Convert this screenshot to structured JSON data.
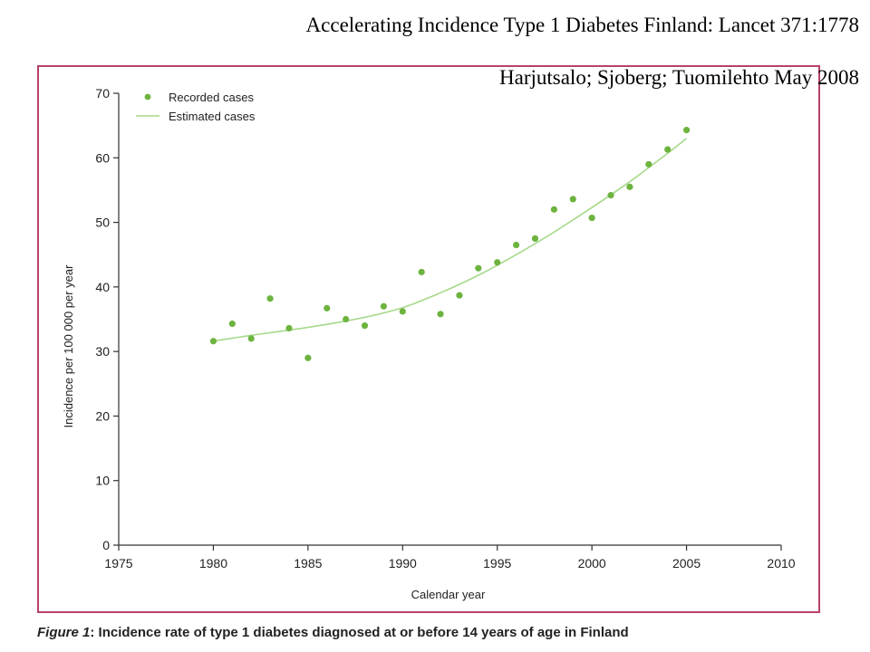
{
  "slide": {
    "title_line_1": "Accelerating Incidence Type 1 Diabetes Finland: Lancet 371:1778",
    "title_line_2": "Harjutsalo; Sjoberg; Tuomilehto May 2008",
    "frame_color": "#b84266"
  },
  "caption": {
    "figure_label": "Figure 1",
    "text": ": Incidence rate of type 1 diabetes diagnosed at or before 14 years of age in Finland"
  },
  "chart_data": {
    "type": "scatter",
    "xlabel": "Calendar year",
    "ylabel": "Incidence per 100 000 per year",
    "xlim": [
      1975,
      2010
    ],
    "ylim": [
      0,
      70
    ],
    "xticks": [
      1975,
      1980,
      1985,
      1990,
      1995,
      2000,
      2005,
      2010
    ],
    "yticks": [
      0,
      10,
      20,
      30,
      40,
      50,
      60,
      70
    ],
    "grid": false,
    "legend_position": "top-left",
    "colors": {
      "recorded": "#6db33f",
      "estimated": "#a6d98a",
      "axis": "#333333"
    },
    "series": [
      {
        "name": "Recorded cases",
        "style": "points",
        "x": [
          1980,
          1981,
          1982,
          1983,
          1984,
          1985,
          1986,
          1987,
          1988,
          1989,
          1990,
          1991,
          1992,
          1993,
          1994,
          1995,
          1996,
          1997,
          1998,
          1999,
          2000,
          2001,
          2002,
          2003,
          2004,
          2005
        ],
        "y": [
          31.6,
          34.3,
          32.0,
          38.2,
          33.6,
          29.0,
          36.7,
          35.0,
          34.0,
          37.0,
          36.2,
          42.3,
          35.8,
          38.7,
          42.9,
          43.8,
          46.5,
          47.5,
          52.0,
          53.6,
          50.7,
          54.2,
          55.5,
          59.0,
          61.3,
          64.3
        ]
      },
      {
        "name": "Estimated cases",
        "style": "line",
        "x": [
          1980,
          1982,
          1984,
          1986,
          1988,
          1990,
          1992,
          1994,
          1996,
          1998,
          2000,
          2002,
          2004,
          2005
        ],
        "y": [
          31.6,
          32.5,
          33.3,
          34.2,
          35.3,
          36.8,
          39.1,
          41.8,
          45.0,
          48.5,
          52.3,
          56.3,
          60.7,
          63.0
        ]
      }
    ]
  }
}
